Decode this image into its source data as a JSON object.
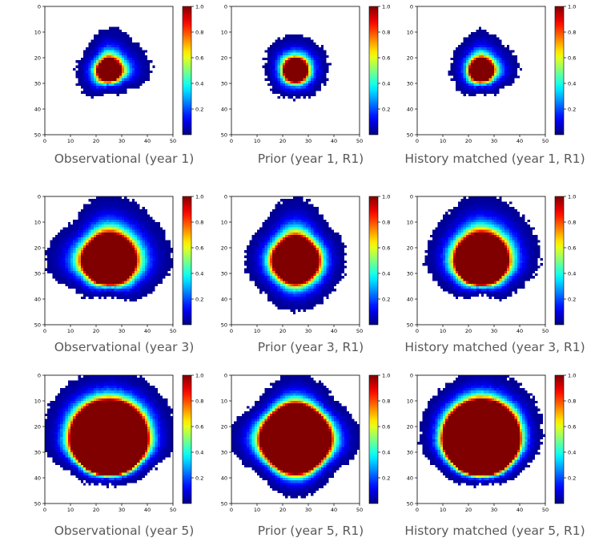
{
  "figure": {
    "colorscale": "jet",
    "colorbar_ticks": [
      "0.2",
      "0.4",
      "0.6",
      "0.8",
      "1.0"
    ],
    "axis_ticks": [
      "0",
      "10",
      "20",
      "30",
      "40",
      "50"
    ]
  },
  "chart_data": [
    {
      "type": "heatmap",
      "row": 0,
      "col": 0,
      "title": "Observational (year 1)",
      "xlim": [
        0,
        50
      ],
      "ylim": [
        50,
        0
      ],
      "colorbar_range": [
        0,
        1
      ],
      "plume": {
        "center": [
          25,
          25
        ],
        "core_radius": 4,
        "front_radii": {
          "N": 17,
          "E": 17,
          "S": 9,
          "W": 13,
          "NE": 15,
          "NW": 12,
          "SE": 11,
          "SW": 13
        }
      }
    },
    {
      "type": "heatmap",
      "row": 0,
      "col": 1,
      "title": "Prior (year 1, R1)",
      "xlim": [
        0,
        50
      ],
      "ylim": [
        50,
        0
      ],
      "colorbar_range": [
        0,
        1
      ],
      "plume": {
        "center": [
          25,
          25
        ],
        "core_radius": 4,
        "front_radii": {
          "N": 14,
          "E": 13,
          "S": 11,
          "W": 12,
          "NE": 14,
          "NW": 14,
          "SE": 12,
          "SW": 12
        }
      }
    },
    {
      "type": "heatmap",
      "row": 0,
      "col": 2,
      "title": "History matched (year 1, R1)",
      "xlim": [
        0,
        50
      ],
      "ylim": [
        50,
        0
      ],
      "colorbar_range": [
        0,
        1
      ],
      "plume": {
        "center": [
          25,
          25
        ],
        "core_radius": 4,
        "front_radii": {
          "N": 16,
          "E": 15,
          "S": 9,
          "W": 12,
          "NE": 14,
          "NW": 13,
          "SE": 11,
          "SW": 12
        }
      }
    },
    {
      "type": "heatmap",
      "row": 1,
      "col": 0,
      "title": "Observational (year 3)",
      "xlim": [
        0,
        50
      ],
      "ylim": [
        50,
        0
      ],
      "colorbar_range": [
        0,
        1
      ],
      "plume": {
        "center": [
          25,
          25
        ],
        "core_radius": 9,
        "front_radii": {
          "N": 26,
          "E": 25,
          "S": 14,
          "W": 25,
          "NE": 24,
          "NW": 21,
          "SE": 20,
          "SW": 18
        }
      }
    },
    {
      "type": "heatmap",
      "row": 1,
      "col": 1,
      "title": "Prior (year 3, R1)",
      "xlim": [
        0,
        50
      ],
      "ylim": [
        50,
        0
      ],
      "colorbar_range": [
        0,
        1
      ],
      "plume": {
        "center": [
          25,
          25
        ],
        "core_radius": 8,
        "front_radii": {
          "N": 25,
          "E": 20,
          "S": 20,
          "W": 20,
          "NE": 19,
          "NW": 19,
          "SE": 19,
          "SW": 18
        }
      }
    },
    {
      "type": "heatmap",
      "row": 1,
      "col": 2,
      "title": "History matched (year 3, R1)",
      "xlim": [
        0,
        50
      ],
      "ylim": [
        50,
        0
      ],
      "colorbar_range": [
        0,
        1
      ],
      "plume": {
        "center": [
          25,
          25
        ],
        "core_radius": 9,
        "front_radii": {
          "N": 26,
          "E": 23,
          "S": 14,
          "W": 22,
          "NE": 24,
          "NW": 22,
          "SE": 18,
          "SW": 18
        }
      }
    },
    {
      "type": "heatmap",
      "row": 2,
      "col": 0,
      "title": "Observational (year 5)",
      "xlim": [
        0,
        50
      ],
      "ylim": [
        50,
        0
      ],
      "colorbar_range": [
        0,
        1
      ],
      "plume": {
        "center": [
          25,
          25
        ],
        "core_radius": 13,
        "front_radii": {
          "N": 27,
          "E": 26,
          "S": 18,
          "W": 26,
          "NE": 27,
          "NW": 27,
          "SE": 20,
          "SW": 20
        }
      }
    },
    {
      "type": "heatmap",
      "row": 2,
      "col": 1,
      "title": "Prior (year 5, R1)",
      "xlim": [
        0,
        50
      ],
      "ylim": [
        50,
        0
      ],
      "colorbar_range": [
        0,
        1
      ],
      "plume": {
        "center": [
          25,
          25
        ],
        "core_radius": 12,
        "front_radii": {
          "N": 26,
          "E": 26,
          "S": 23,
          "W": 26,
          "NE": 22,
          "NW": 21,
          "SE": 20,
          "SW": 20
        }
      }
    },
    {
      "type": "heatmap",
      "row": 2,
      "col": 2,
      "title": "History matched (year 5, R1)",
      "xlim": [
        0,
        50
      ],
      "ylim": [
        50,
        0
      ],
      "colorbar_range": [
        0,
        1
      ],
      "plume": {
        "center": [
          25,
          25
        ],
        "core_radius": 13,
        "front_radii": {
          "N": 27,
          "E": 24,
          "S": 18,
          "W": 24,
          "NE": 26,
          "NW": 25,
          "SE": 20,
          "SW": 20
        }
      }
    }
  ]
}
